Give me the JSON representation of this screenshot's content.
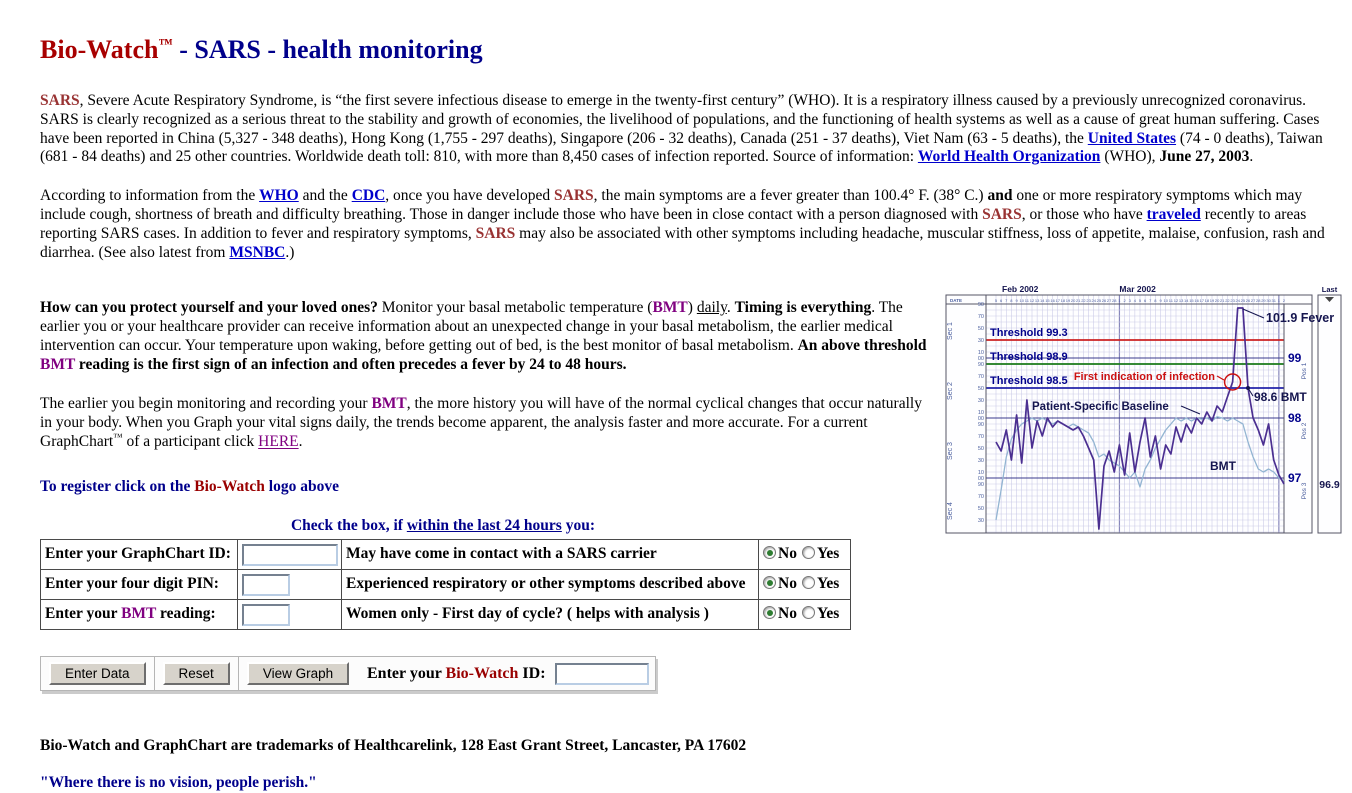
{
  "title": {
    "segments": [
      {
        "t": "Bio-Watch",
        "s": "title-red"
      },
      {
        "t": "™",
        "s": "title-tm"
      },
      {
        "t": " - SARS - health monitoring",
        "s": "title-navy"
      }
    ]
  },
  "paragraphs": [
    {
      "segments": [
        {
          "t": "SARS",
          "s": "sars"
        },
        {
          "t": ", Severe Acute Respiratory Syndrome, is “the first severe infectious disease to emerge in the twenty-first century” (WHO). It is a respiratory illness caused by a previously unrecognized coronavirus. SARS is clearly recognized as a serious threat to the stability and growth of economies, the livelihood of populations, and the functioning of health systems as well as a cause of great human suffering. Cases have been reported in China (5,327 - 348 deaths), Hong Kong (1,755 - 297 deaths), Singapore (206 - 32 deaths), Canada (251 - 37 deaths), Viet Nam (63 - 5 deaths), the ",
          "s": ""
        },
        {
          "t": "United States",
          "s": "link",
          "name": "united-states-link"
        },
        {
          "t": " (74 - 0 deaths), Taiwan (681 - 84 deaths) and 25 other countries. Worldwide death toll: 810, with more than 8,450 cases of infection reported. Source of information: ",
          "s": ""
        },
        {
          "t": "World Health Organization",
          "s": "link",
          "name": "world-health-organization-link"
        },
        {
          "t": " (WHO), ",
          "s": ""
        },
        {
          "t": "June 27, 2003",
          "s": "b"
        },
        {
          "t": ".",
          "s": ""
        }
      ]
    },
    {
      "segments": [
        {
          "t": "According to information from the ",
          "s": ""
        },
        {
          "t": "WHO",
          "s": "link",
          "name": "who-link"
        },
        {
          "t": " and the ",
          "s": ""
        },
        {
          "t": "CDC",
          "s": "link",
          "name": "cdc-link"
        },
        {
          "t": ", once you have developed ",
          "s": ""
        },
        {
          "t": "SARS",
          "s": "sars"
        },
        {
          "t": ", the main symptoms are a fever greater than 100.4° F. (38° C.) ",
          "s": ""
        },
        {
          "t": "and",
          "s": "b"
        },
        {
          "t": " one or more respiratory symptoms which may include cough, shortness of breath and difficulty breathing. Those in danger include those who have been in close contact with a person diagnosed with ",
          "s": ""
        },
        {
          "t": "SARS",
          "s": "sars"
        },
        {
          "t": ", or those who have ",
          "s": ""
        },
        {
          "t": "traveled",
          "s": "link",
          "name": "traveled-link"
        },
        {
          "t": " recently to areas reporting SARS cases. In addition to fever and respiratory symptoms, ",
          "s": ""
        },
        {
          "t": "SARS",
          "s": "sars"
        },
        {
          "t": " may also be associated with other symptoms including headache, muscular stiffness, loss of appetite, malaise, confusion, rash and diarrhea. (See also latest from ",
          "s": ""
        },
        {
          "t": "MSNBC",
          "s": "link",
          "name": "msnbc-link"
        },
        {
          "t": ".)",
          "s": ""
        }
      ]
    },
    {
      "segments": [
        {
          "t": "How can you protect yourself and your loved ones?",
          "s": "b"
        },
        {
          "t": "   Monitor your basal metabolic temperature (",
          "s": ""
        },
        {
          "t": "BMT",
          "s": "bmt"
        },
        {
          "t": ") ",
          "s": ""
        },
        {
          "t": "daily",
          "s": "u"
        },
        {
          "t": ".    ",
          "s": ""
        },
        {
          "t": "Timing is everything",
          "s": "b"
        },
        {
          "t": ".   The earlier you or your healthcare provider can receive information about an unexpected change in your basal metabolism, the earlier medical intervention can occur.  Your temperature upon waking, before getting out of bed, is the best monitor of basal metabolism. ",
          "s": ""
        },
        {
          "t": "An above threshold ",
          "s": "b"
        },
        {
          "t": "BMT",
          "s": "bmt"
        },
        {
          "t": " reading is the first sign of an infection and often precedes a fever by 24 to 48 hours.",
          "s": "b"
        }
      ]
    },
    {
      "segments": [
        {
          "t": "The earlier you begin monitoring and recording your ",
          "s": ""
        },
        {
          "t": "BMT",
          "s": "bmt"
        },
        {
          "t": ", the more history you will have of the normal cyclical changes that occur naturally in your body. When you Graph your vital signs daily, the trends become apparent, the analysis faster and more accurate. For a current GraphChart",
          "s": ""
        },
        {
          "t": "™",
          "s": "sup"
        },
        {
          "t": " of a participant click ",
          "s": ""
        },
        {
          "t": "HERE",
          "s": "visited",
          "name": "here-link"
        },
        {
          "t": ".",
          "s": ""
        }
      ]
    }
  ],
  "register_line": {
    "segments": [
      {
        "t": "To register click on the ",
        "s": "navyb"
      },
      {
        "t": "Bio-Watch",
        "s": "redb"
      },
      {
        "t": " logo above",
        "s": "navyb"
      }
    ]
  },
  "form": {
    "heading": {
      "segments": [
        {
          "t": "Check the box, if ",
          "s": "navyb"
        },
        {
          "t": "within the last 24 hours",
          "s": "navybu"
        },
        {
          "t": " you:",
          "s": "navyb"
        }
      ]
    },
    "radio": {
      "no": "No",
      "yes": "Yes",
      "selected": "No"
    },
    "rows": [
      {
        "label": [
          {
            "t": "Enter your GraphChart ID:",
            "s": "b"
          }
        ],
        "symptom": "May have come in contact with a SARS carrier"
      },
      {
        "label": [
          {
            "t": "Enter your four digit PIN:",
            "s": "b"
          }
        ],
        "symptom": "Experienced respiratory or other symptoms described above"
      },
      {
        "label": [
          {
            "t": "Enter your ",
            "s": "b"
          },
          {
            "t": "BMT",
            "s": "bmt"
          },
          {
            "t": " reading:",
            "s": "b"
          }
        ],
        "symptom": "Women only - First day of cycle? ( helps with analysis )"
      }
    ]
  },
  "toolbar": {
    "buttons": [
      {
        "label": "Enter Data",
        "name": "enter-data-button"
      },
      {
        "label": "Reset",
        "name": "reset-button"
      },
      {
        "label": "View Graph",
        "name": "view-graph-button"
      }
    ],
    "id_label": [
      {
        "t": "Enter your ",
        "s": "b"
      },
      {
        "t": "Bio-Watch",
        "s": "redb"
      },
      {
        "t": " ID:",
        "s": "b"
      }
    ]
  },
  "footer": {
    "trademark": "Bio-Watch and GraphChart are trademarks of Healthcarelink, 128 East Grant Street, Lancaster, PA 17602",
    "quote": "\"Where there is no vision, people perish.\""
  },
  "chart": {
    "months": [
      "Feb 2002",
      "Mar 2002"
    ],
    "last_label": "Last",
    "date_label": "DATE",
    "days": [
      "5",
      "6",
      "7",
      "8",
      "9",
      "10",
      "11",
      "12",
      "13",
      "14",
      "15",
      "16",
      "17",
      "18",
      "19",
      "20",
      "21",
      "22",
      "23",
      "24",
      "25",
      "26",
      "27",
      "28",
      "1",
      "2",
      "3",
      "4",
      "5",
      "6",
      "7",
      "8",
      "9",
      "10",
      "11",
      "12",
      "13",
      "14",
      "15",
      "16",
      "17",
      "18",
      "19",
      "20",
      "21",
      "22",
      "23",
      "24",
      "25",
      "26",
      "27",
      "28",
      "29",
      "30",
      "31",
      "1",
      "2"
    ],
    "sections": [
      "Sec 1",
      "Sec 2",
      "Sec 3",
      "Sec 4"
    ],
    "tick_pattern": [
      "90",
      "70",
      "50",
      "30",
      "10",
      "00"
    ],
    "thresholds": [
      {
        "label": "Threshold 99.3",
        "value": 99.3,
        "color": "#cc2222"
      },
      {
        "label": "Threshold 98.9",
        "value": 98.9,
        "color": "#1a7a1a"
      },
      {
        "label": "Threshold 98.5",
        "value": 98.5,
        "color": "#2222aa"
      }
    ],
    "right_axis": [
      {
        "label": "99",
        "value": 99
      },
      {
        "label": "98",
        "value": 98
      },
      {
        "label": "97",
        "value": 97
      }
    ],
    "pos_labels": [
      "Pos 1",
      "Pos 2",
      "Pos 3"
    ],
    "last_value": {
      "label": "96.9",
      "value": 96.9
    },
    "annotations": {
      "fever": "101.9 Fever",
      "first_indication": "First indication of infection",
      "bmt_point": "98.6 BMT",
      "bmt_line": "BMT",
      "baseline": "Patient-Specific Baseline"
    },
    "mar1_index": 24,
    "apr1_index": 55,
    "fever_index": 48,
    "circle_index": 46,
    "bmt_dot_index": 49,
    "series": {
      "bmt": [
        97.6,
        97.45,
        97.8,
        97.3,
        98.05,
        97.25,
        98.3,
        97.5,
        97.95,
        97.7,
        98.0,
        97.85,
        97.95,
        97.9,
        97.85,
        97.8,
        97.85,
        97.7,
        97.5,
        97.3,
        96.15,
        97.2,
        97.45,
        97.1,
        97.55,
        97.05,
        97.75,
        97.1,
        97.6,
        98.0,
        97.35,
        97.7,
        97.15,
        97.55,
        97.4,
        97.85,
        97.6,
        97.9,
        97.75,
        98.0,
        97.9,
        98.1,
        97.95,
        98.2,
        98.1,
        98.35,
        98.6,
        99.9,
        99.9,
        98.5,
        98.0,
        97.8,
        97.55,
        97.9,
        97.3,
        97.05,
        96.9
      ],
      "baseline": [
        96.3,
        96.8,
        97.35,
        97.65,
        97.8,
        97.9,
        97.95,
        98.0,
        97.95,
        98.0,
        97.95,
        97.9,
        97.95,
        97.9,
        97.85,
        97.9,
        97.85,
        97.8,
        97.75,
        97.6,
        97.35,
        97.4,
        97.3,
        97.25,
        97.2,
        97.1,
        97.0,
        97.1,
        96.85,
        97.15,
        97.3,
        97.5,
        97.65,
        97.8,
        97.9,
        98.0,
        97.95,
        98.0,
        97.95,
        98.0,
        97.98,
        98.0,
        97.95,
        98.02,
        98.0,
        97.95,
        98.0,
        97.95,
        97.9,
        97.6,
        97.35,
        97.15,
        97.1,
        97.15,
        97.1,
        97.0,
        96.95
      ]
    }
  }
}
